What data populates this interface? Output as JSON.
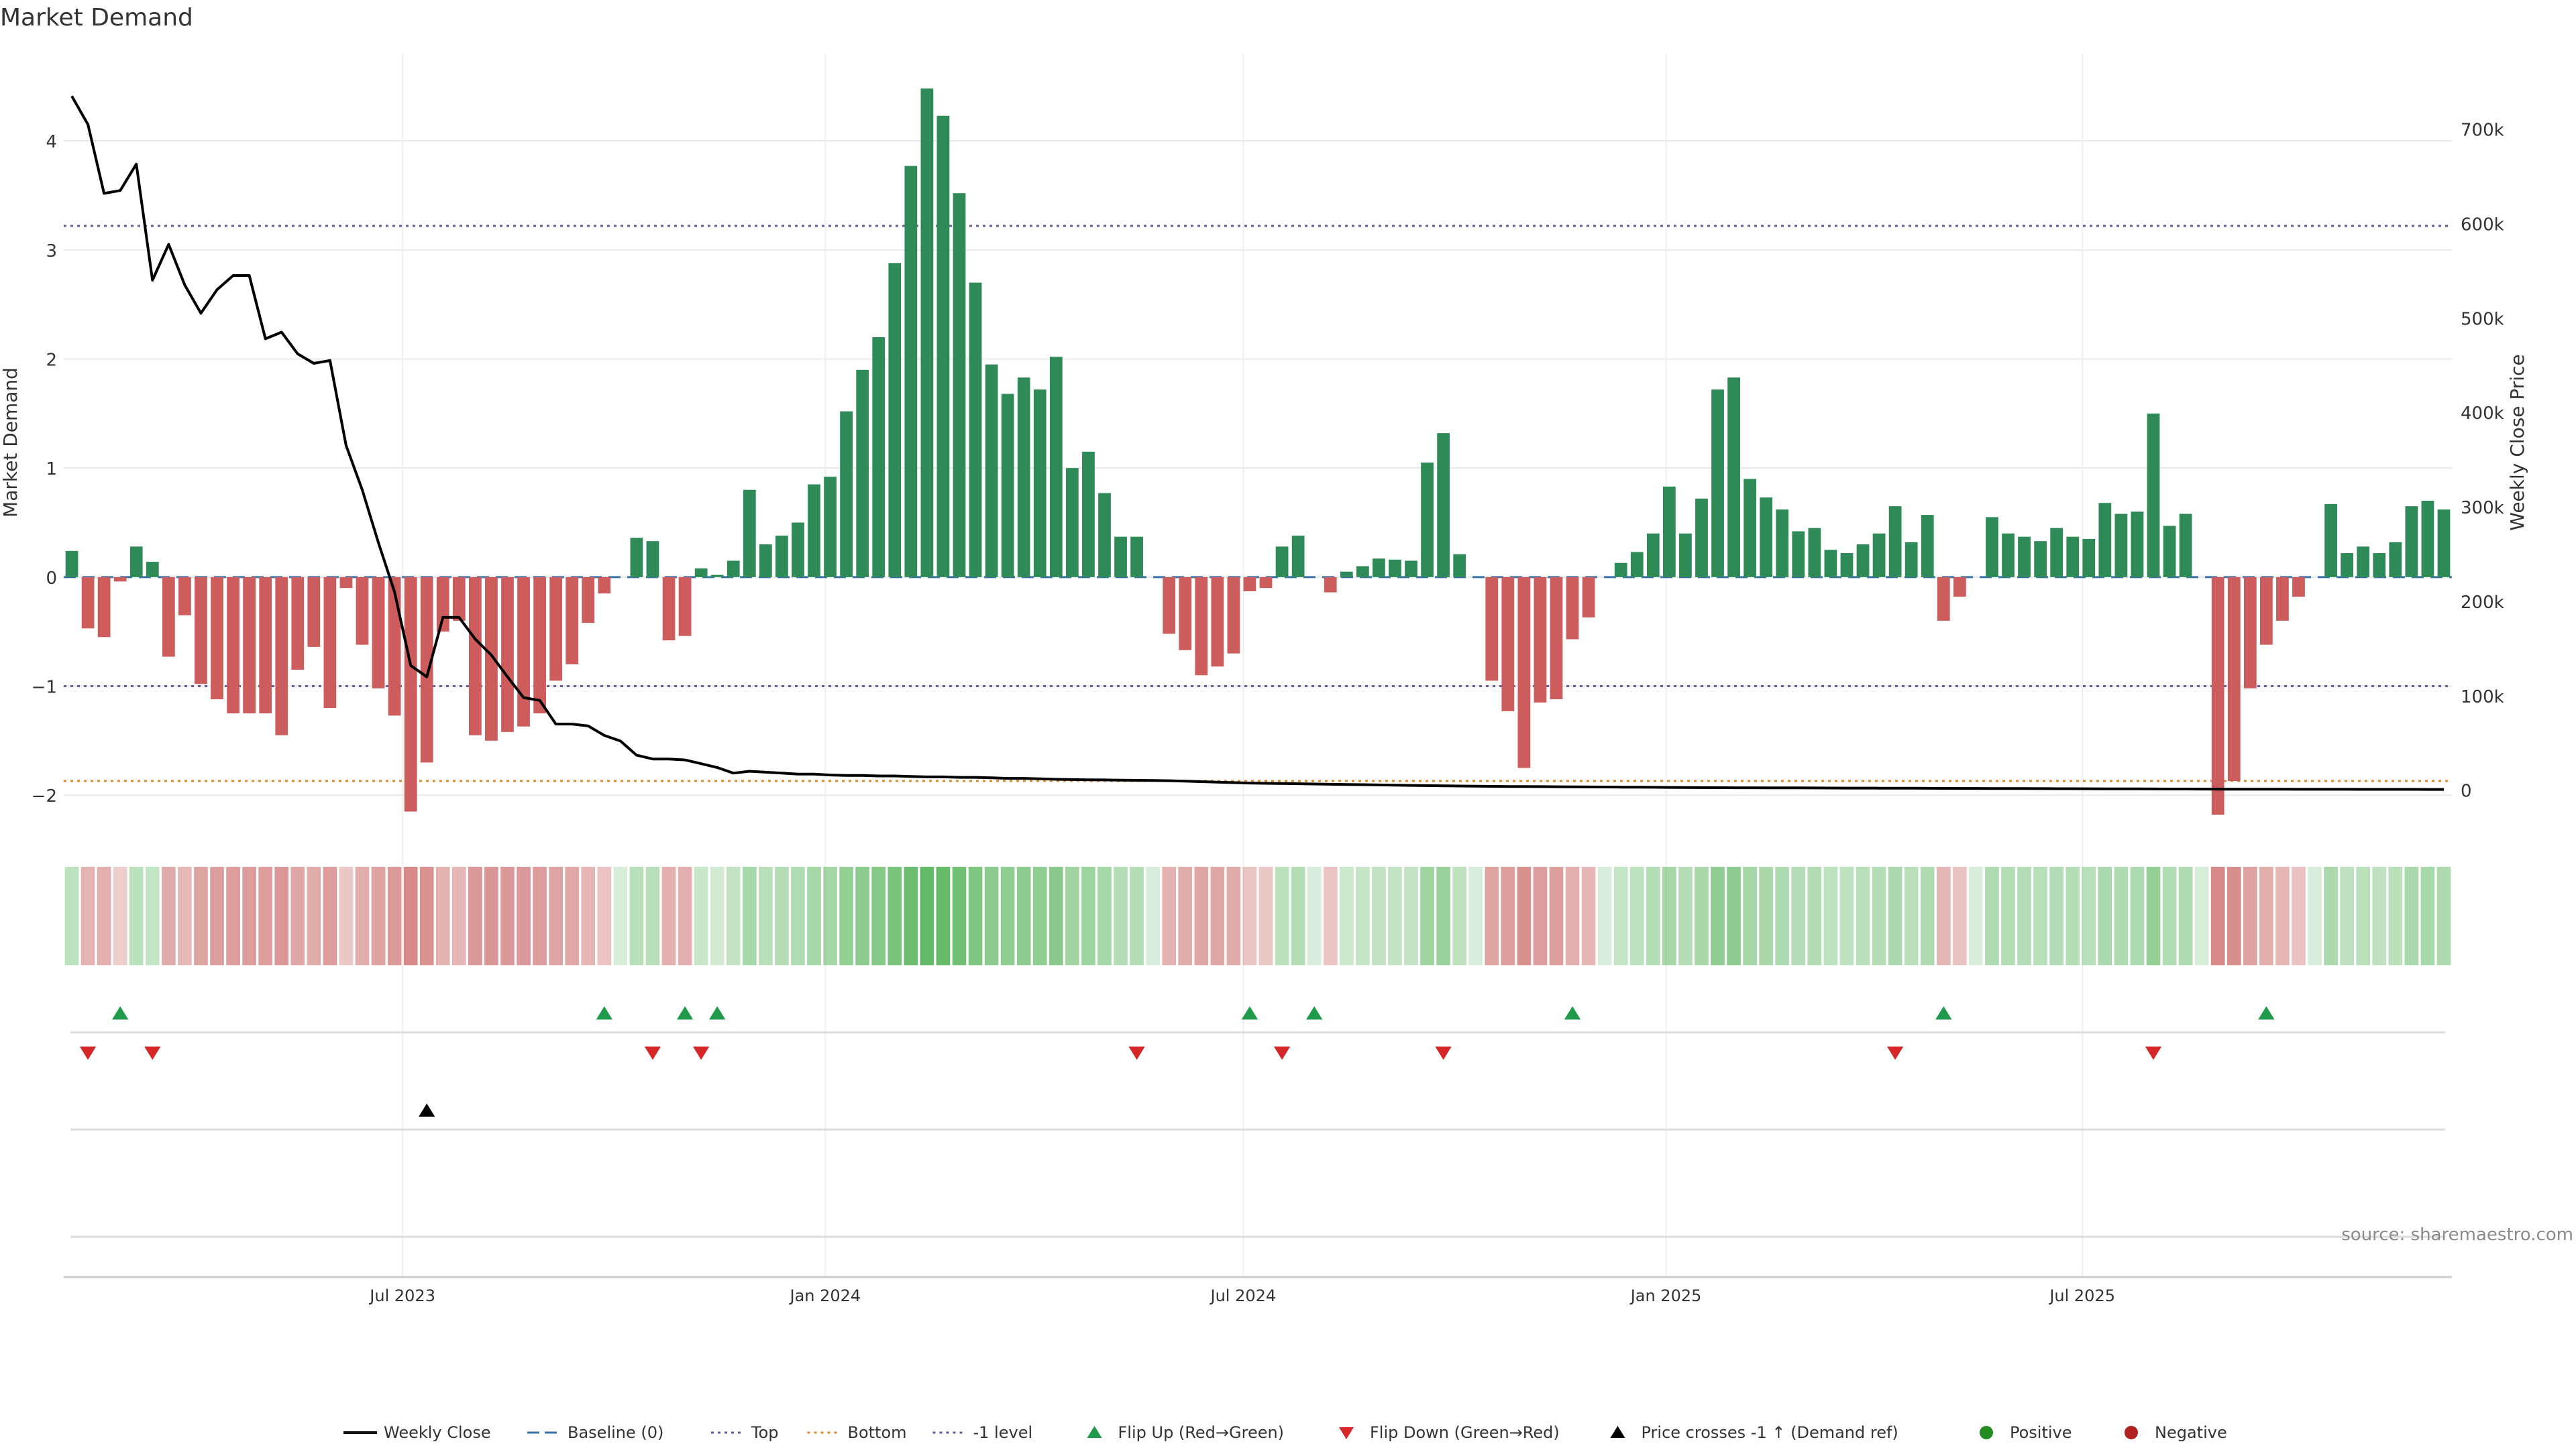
{
  "chart_data": {
    "type": "bar",
    "title": "Market Demand",
    "ylabel": "Market Demand",
    "ylabel_right": "Weekly Close Price",
    "ylim": [
      -2.3,
      4.8
    ],
    "ylim_right": [
      -40000,
      780000
    ],
    "y_ticks": [
      -2,
      -1,
      0,
      1,
      2,
      3,
      4
    ],
    "y_tick_labels": [
      "−2",
      "−1",
      "0",
      "1",
      "2",
      "3",
      "4"
    ],
    "y_right_ticks": [
      0,
      100000,
      200000,
      300000,
      400000,
      500000,
      600000,
      700000
    ],
    "y_right_tick_labels": [
      "0",
      "100k",
      "200k",
      "300k",
      "400k",
      "500k",
      "600k",
      "700k"
    ],
    "x_ticks": [
      {
        "label": "Jul 2023",
        "week_index": 20.5
      },
      {
        "label": "Jan 2024",
        "week_index": 46.7
      },
      {
        "label": "Jul 2024",
        "week_index": 72.6
      },
      {
        "label": "Jan 2025",
        "week_index": 98.8
      },
      {
        "label": "Jul 2025",
        "week_index": 124.6
      }
    ],
    "reference_lines": {
      "top": 3.22,
      "bottom": -1.87,
      "minus_one_level": -1
    },
    "series": [
      {
        "name": "Market Demand",
        "values": [
          0.24,
          -0.47,
          -0.55,
          -0.04,
          0.28,
          0.14,
          -0.73,
          -0.35,
          -0.98,
          -1.12,
          -1.25,
          -1.25,
          -1.25,
          -1.45,
          -0.85,
          -0.64,
          -1.2,
          -0.1,
          -0.62,
          -1.02,
          -1.27,
          -2.15,
          -1.7,
          -0.5,
          -0.4,
          -1.45,
          -1.5,
          -1.42,
          -1.37,
          -1.25,
          -0.95,
          -0.8,
          -0.42,
          -0.15,
          0.0,
          0.36,
          0.33,
          -0.58,
          -0.54,
          0.08,
          0.02,
          0.15,
          0.8,
          0.3,
          0.38,
          0.5,
          0.85,
          0.92,
          1.52,
          1.9,
          2.2,
          2.88,
          3.77,
          4.48,
          4.23,
          3.52,
          2.7,
          1.95,
          1.68,
          1.83,
          1.72,
          2.02,
          1.0,
          1.15,
          0.77,
          0.37,
          0.37,
          0.0,
          -0.52,
          -0.67,
          -0.9,
          -0.82,
          -0.7,
          -0.13,
          -0.1,
          0.28,
          0.38,
          0.0,
          -0.14,
          0.05,
          0.1,
          0.17,
          0.16,
          0.15,
          1.05,
          1.32,
          0.21,
          0.0,
          -0.95,
          -1.23,
          -1.75,
          -1.15,
          -1.12,
          -0.57,
          -0.37,
          0.0,
          0.13,
          0.23,
          0.4,
          0.83,
          0.4,
          0.72,
          1.72,
          1.83,
          0.9,
          0.73,
          0.62,
          0.42,
          0.45,
          0.25,
          0.22,
          0.3,
          0.4,
          0.65,
          0.32,
          0.57,
          -0.4,
          -0.18,
          0.0,
          0.55,
          0.4,
          0.37,
          0.33,
          0.45,
          0.37,
          0.35,
          0.68,
          0.58,
          0.6,
          1.5,
          0.47,
          0.58,
          0.0,
          -2.18,
          -1.87,
          -1.02,
          -0.62,
          -0.4,
          -0.18,
          0.0,
          0.67,
          0.22,
          0.28,
          0.22,
          0.32,
          0.65,
          0.7,
          0.62
        ]
      },
      {
        "name": "Weekly Close",
        "axis": "right",
        "values": [
          735000,
          705000,
          632000,
          635000,
          663000,
          540000,
          578000,
          535000,
          505000,
          530000,
          545000,
          545000,
          478000,
          485000,
          462000,
          452000,
          455000,
          365000,
          318000,
          262000,
          210000,
          132000,
          120000,
          183000,
          183000,
          160000,
          143000,
          120000,
          98000,
          95000,
          70000,
          70000,
          68000,
          58000,
          52000,
          37000,
          33000,
          33000,
          32000,
          28000,
          24000,
          18000,
          20000,
          19000,
          18000,
          17000,
          17000,
          16000,
          15500,
          15500,
          15000,
          15000,
          14500,
          14000,
          14000,
          13500,
          13500,
          13000,
          12500,
          12500,
          12000,
          11500,
          11200,
          11000,
          10800,
          10600,
          10400,
          10200,
          10000,
          9500,
          9000,
          8500,
          8000,
          7500,
          7200,
          7000,
          6800,
          6500,
          6200,
          6000,
          5800,
          5500,
          5200,
          5000,
          4800,
          4600,
          4400,
          4200,
          4000,
          3900,
          3800,
          3700,
          3600,
          3500,
          3400,
          3300,
          3200,
          3100,
          3000,
          2900,
          2800,
          2700,
          2600,
          2550,
          2500,
          2450,
          2400,
          2350,
          2300,
          2250,
          2200,
          2150,
          2100,
          2050,
          2000,
          1950,
          1900,
          1850,
          1800,
          1750,
          1700,
          1650,
          1600,
          1550,
          1500,
          1450,
          1400,
          1350,
          1300,
          1250,
          1200,
          1150,
          1100,
          1050,
          1000,
          980,
          960,
          940,
          920,
          900,
          880,
          860,
          840,
          820,
          800,
          790,
          780,
          770
        ]
      }
    ],
    "flip_up_weeks": [
      3,
      33,
      38,
      40,
      73,
      77,
      93,
      116,
      136
    ],
    "flip_down_weeks": [
      1,
      5,
      36,
      39,
      66,
      75,
      85,
      113,
      129
    ],
    "price_cross_weeks": [
      22
    ],
    "legend": {
      "position": "bottom-center",
      "entries": [
        {
          "label": "Weekly Close",
          "symbol": "line",
          "color": "#111111"
        },
        {
          "label": "Baseline (0)",
          "symbol": "dash",
          "color": "#3b72a8"
        },
        {
          "label": "Top",
          "symbol": "dot",
          "color": "#6a5a9a"
        },
        {
          "label": "Bottom",
          "symbol": "dot",
          "color": "#e08a2e"
        },
        {
          "label": "-1 level",
          "symbol": "dot",
          "color": "#6a5a9a"
        },
        {
          "label": "Flip Up (Red→Green)",
          "symbol": "triangle-up",
          "color": "#1e9a4a"
        },
        {
          "label": "Flip Down (Green→Red)",
          "symbol": "triangle-down",
          "color": "#d62728"
        },
        {
          "label": "Price crosses -1 ↑ (Demand ref)",
          "symbol": "triangle-up",
          "color": "#000000"
        },
        {
          "label": "Positive",
          "symbol": "circle",
          "color": "#228b22"
        },
        {
          "label": "Negative",
          "symbol": "circle",
          "color": "#b22222"
        }
      ]
    },
    "colors": {
      "positive_bar": "#2e8b57",
      "negative_bar": "#cd5c5c",
      "price_line": "#000000",
      "grid": "#e8e8e8"
    },
    "source_text": "source: sharemaestro.com"
  }
}
